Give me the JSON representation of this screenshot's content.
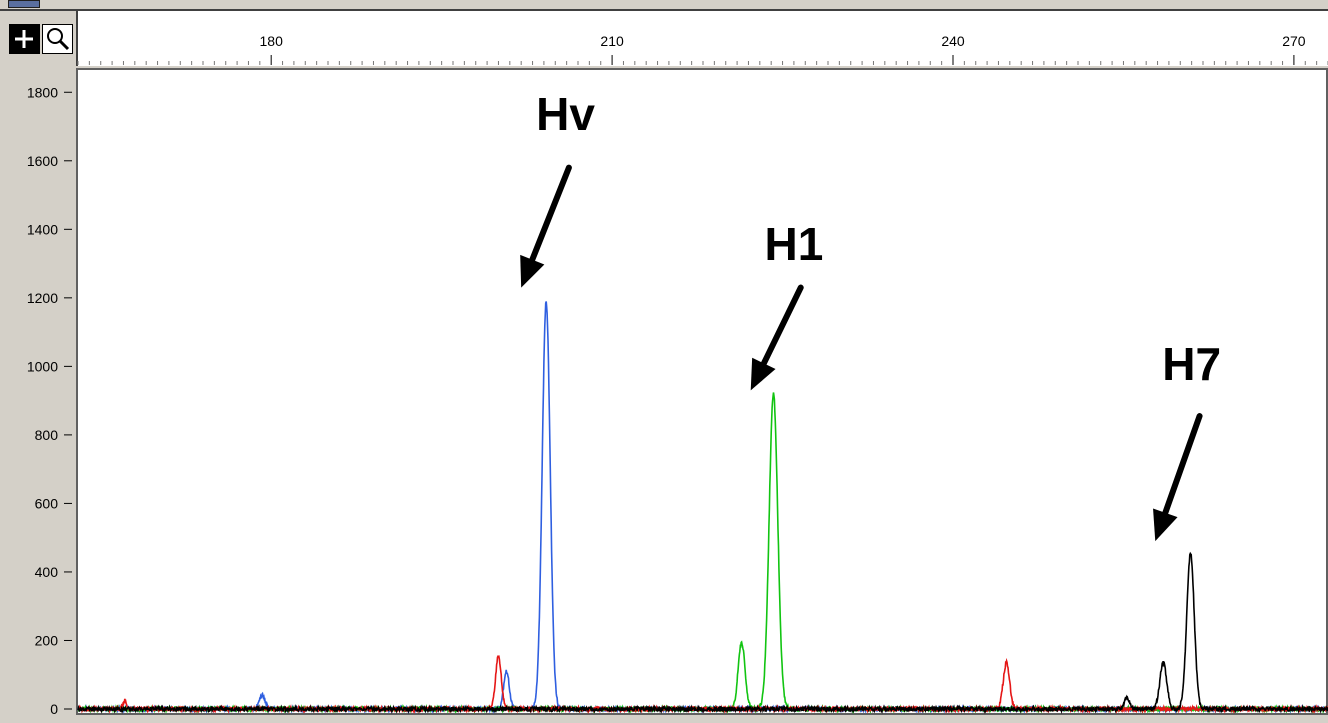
{
  "chart_data": {
    "type": "line",
    "title": "",
    "xlabel": "",
    "ylabel": "",
    "xlim": [
      163,
      273
    ],
    "ylim": [
      0,
      1900
    ],
    "x_ticks": [
      180,
      210,
      240,
      270
    ],
    "y_ticks": [
      0,
      200,
      400,
      600,
      800,
      1000,
      1200,
      1400,
      1600,
      1800
    ],
    "y_tick_labels": [
      "0",
      "200",
      "400",
      "600",
      "800",
      "1000",
      "1200",
      "1400",
      "1600",
      "1800"
    ],
    "grid": false,
    "series": [
      {
        "color": "#2f5fe0",
        "peaks": [
          {
            "x": 179.2,
            "height": 40,
            "sigma": 0.25
          },
          {
            "x": 200.7,
            "height": 110,
            "sigma": 0.25
          },
          {
            "x": 204.2,
            "height": 1190,
            "sigma": 0.35
          }
        ]
      },
      {
        "color": "#11c411",
        "peaks": [
          {
            "x": 221.4,
            "height": 195,
            "sigma": 0.3
          },
          {
            "x": 224.2,
            "height": 920,
            "sigma": 0.38
          }
        ]
      },
      {
        "color": "#e51616",
        "peaks": [
          {
            "x": 167.1,
            "height": 25,
            "sigma": 0.15
          },
          {
            "x": 200.0,
            "height": 155,
            "sigma": 0.25
          },
          {
            "x": 244.7,
            "height": 135,
            "sigma": 0.28
          }
        ]
      },
      {
        "color": "#000000",
        "peaks": [
          {
            "x": 255.3,
            "height": 30,
            "sigma": 0.25
          },
          {
            "x": 258.5,
            "height": 135,
            "sigma": 0.3
          },
          {
            "x": 260.9,
            "height": 455,
            "sigma": 0.33
          }
        ]
      }
    ],
    "annotations": [
      {
        "text": "Hv",
        "label_x": 205.9,
        "label_y": 1690,
        "tail": [
          206.2,
          1580
        ],
        "head": [
          202.0,
          1230
        ]
      },
      {
        "text": "H1",
        "label_x": 226.0,
        "label_y": 1310,
        "tail": [
          226.6,
          1230
        ],
        "head": [
          222.2,
          930
        ]
      },
      {
        "text": "H7",
        "label_x": 261.0,
        "label_y": 960,
        "tail": [
          261.7,
          855
        ],
        "head": [
          257.8,
          490
        ]
      }
    ]
  },
  "toolbar": {
    "add_icon": "plus-icon",
    "zoom_icon": "magnifier-icon"
  }
}
